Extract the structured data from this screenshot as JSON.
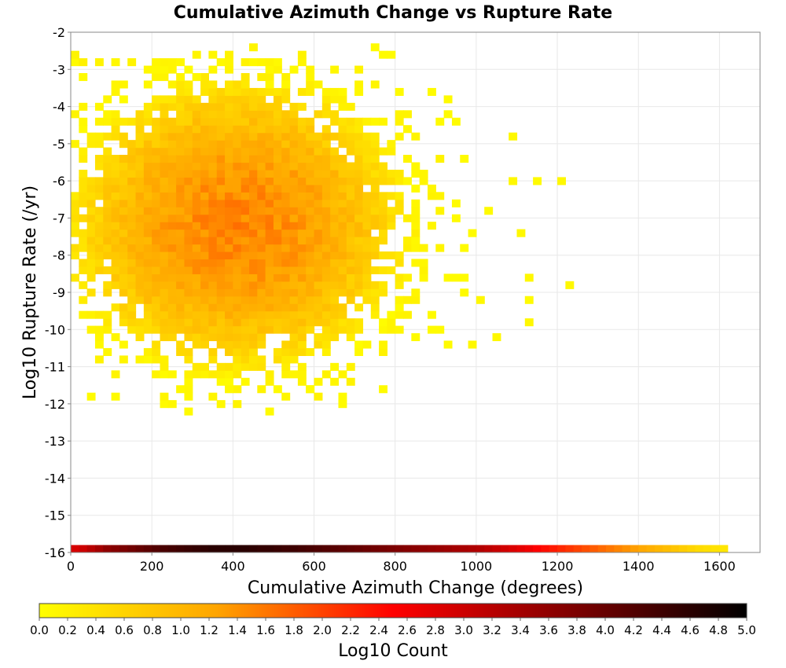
{
  "chart_data": {
    "type": "heatmap",
    "title": "Cumulative Azimuth Change vs Rupture Rate",
    "xlabel": "Cumulative Azimuth Change (degrees)",
    "ylabel": "Log10 Rupture Rate (/yr)",
    "xlim": [
      0,
      1700
    ],
    "ylim": [
      -16,
      -2
    ],
    "x_ticks": [
      0,
      200,
      400,
      600,
      800,
      1000,
      1200,
      1400,
      1600
    ],
    "y_ticks": [
      -2,
      -3,
      -4,
      -5,
      -6,
      -7,
      -8,
      -9,
      -10,
      -11,
      -12,
      -13,
      -14,
      -15,
      -16
    ],
    "bin_width_x": 20,
    "bin_height_y": 0.2,
    "grid": true,
    "colorbar": {
      "label": "Log10 Count",
      "range": [
        0.0,
        5.0
      ],
      "ticks": [
        "0.0",
        "0.2",
        "0.4",
        "0.6",
        "0.8",
        "1.0",
        "1.2",
        "1.4",
        "1.6",
        "1.8",
        "2.0",
        "2.2",
        "2.4",
        "2.6",
        "2.8",
        "3.0",
        "3.2",
        "3.4",
        "3.6",
        "3.8",
        "4.0",
        "4.2",
        "4.4",
        "4.6",
        "4.8",
        "5.0"
      ],
      "stops": [
        "#ffff00",
        "#ffa500",
        "#ff0000",
        "#800000",
        "#000000"
      ]
    },
    "density_model": {
      "core_center": [
        400,
        -7.2
      ],
      "core_log10_count": 1.5,
      "x_extent": [
        0,
        1250
      ],
      "y_extent": [
        -12.2,
        -2.4
      ]
    },
    "zero_rate_row": {
      "y": -16,
      "x": [
        0,
        20,
        40,
        60,
        80,
        100,
        120,
        140,
        160,
        180,
        200,
        220,
        240,
        260,
        280,
        300,
        320,
        340,
        360,
        380,
        400,
        420,
        440,
        460,
        480,
        500,
        520,
        540,
        560,
        580,
        600,
        620,
        640,
        660,
        680,
        700,
        720,
        740,
        760,
        780,
        800,
        820,
        840,
        860,
        880,
        900,
        920,
        940,
        960,
        980,
        1000,
        1020,
        1040,
        1060,
        1080,
        1100,
        1120,
        1140,
        1160,
        1180,
        1200,
        1220,
        1240,
        1260,
        1280,
        1300,
        1320,
        1340,
        1360,
        1380,
        1400,
        1420,
        1440,
        1460,
        1480,
        1500,
        1520,
        1540,
        1560,
        1580,
        1600
      ],
      "log10_count": [
        2.9,
        3.0,
        3.2,
        3.4,
        3.6,
        3.7,
        3.8,
        3.9,
        4.0,
        4.1,
        4.2,
        4.3,
        4.35,
        4.4,
        4.45,
        4.5,
        4.55,
        4.6,
        4.6,
        4.6,
        4.6,
        4.6,
        4.55,
        4.5,
        4.5,
        4.45,
        4.4,
        4.4,
        4.35,
        4.3,
        4.25,
        4.2,
        4.15,
        4.1,
        4.05,
        4.0,
        3.95,
        3.9,
        3.85,
        3.8,
        3.75,
        3.7,
        3.65,
        3.6,
        3.55,
        3.5,
        3.45,
        3.4,
        3.35,
        3.3,
        3.25,
        3.15,
        3.05,
        2.95,
        2.85,
        2.75,
        2.65,
        2.5,
        2.4,
        2.3,
        2.2,
        2.1,
        2.0,
        1.9,
        1.8,
        1.7,
        1.6,
        1.5,
        1.4,
        1.3,
        1.2,
        1.1,
        1.0,
        0.9,
        0.8,
        0.7,
        0.6,
        0.5,
        0.45,
        0.4,
        0.35
      ]
    },
    "outlier_cells": [
      [
        0,
        -2.6,
        0.15
      ],
      [
        20,
        -2.8,
        0.2
      ],
      [
        60,
        -2.8,
        0.15
      ],
      [
        100,
        -2.8,
        0.1
      ],
      [
        140,
        -2.8,
        0.15
      ],
      [
        260,
        -2.8,
        0.1
      ],
      [
        300,
        -3.2,
        0.1
      ],
      [
        480,
        -3.4,
        0.1
      ],
      [
        520,
        -3.4,
        0.1
      ],
      [
        700,
        -3.6,
        0.1
      ],
      [
        920,
        -3.8,
        0.05
      ],
      [
        1080,
        -4.8,
        0.1
      ],
      [
        1200,
        -6.0,
        0.1
      ],
      [
        1220,
        -8.8,
        0.1
      ],
      [
        1100,
        -7.4,
        0.1
      ],
      [
        1120,
        -8.6,
        0.1
      ],
      [
        1120,
        -9.2,
        0.05
      ],
      [
        1120,
        -9.8,
        0.1
      ],
      [
        1000,
        -9.2,
        0.1
      ],
      [
        1040,
        -10.2,
        0.1
      ],
      [
        980,
        -10.4,
        0.1
      ],
      [
        580,
        -11.6,
        0.05
      ],
      [
        500,
        -11.6,
        0.05
      ],
      [
        380,
        -11.6,
        0.1
      ],
      [
        360,
        -12.0,
        0.1
      ],
      [
        280,
        -11.8,
        0.1
      ],
      [
        240,
        -12.0,
        0.1
      ],
      [
        1080,
        -6.0,
        0.1
      ],
      [
        1140,
        -6.0,
        0.05
      ]
    ]
  }
}
